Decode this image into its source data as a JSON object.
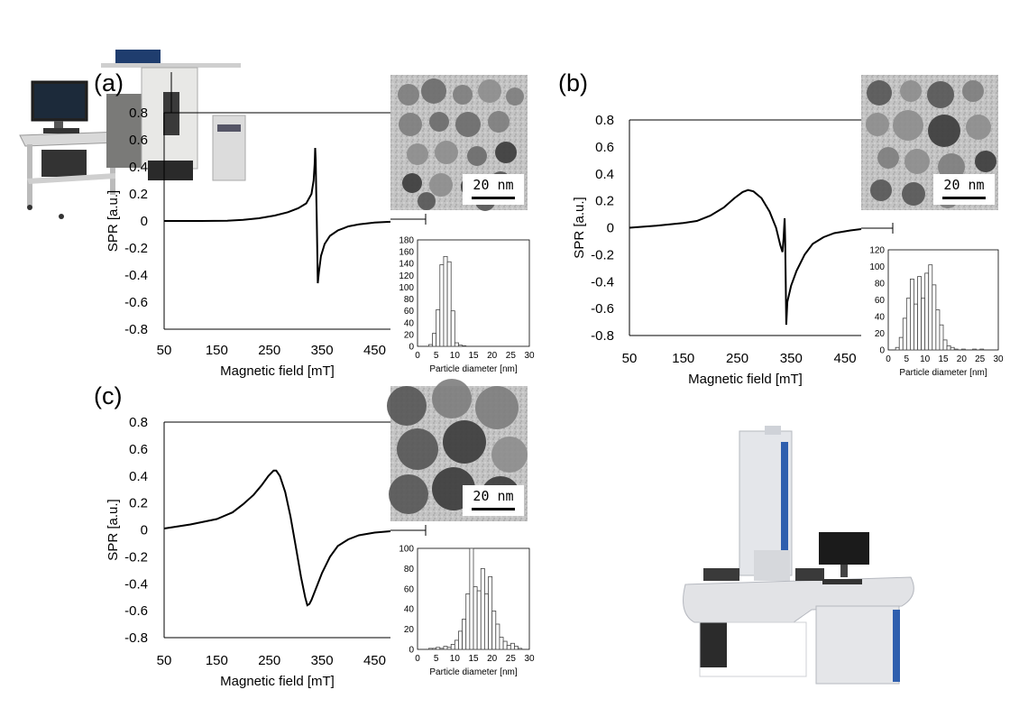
{
  "figure": {
    "panel_labels": [
      "(a)",
      "(b)",
      "(c)"
    ]
  },
  "chart_data": [
    {
      "panel": "(a)",
      "type": "line",
      "xlabel": "Magnetic field [mT]",
      "ylabel": "SPR [a.u.]",
      "xticks": [
        50,
        150,
        250,
        350,
        450
      ],
      "yticks": [
        0.8,
        0.6,
        0.4,
        0.2,
        0,
        -0.2,
        -0.4,
        -0.6,
        -0.8
      ],
      "xlim": [
        50,
        480
      ],
      "ylim": [
        -0.8,
        0.8
      ],
      "series": [
        {
          "values": [
            [
              50,
              0
            ],
            [
              120,
              0
            ],
            [
              170,
              0.002
            ],
            [
              200,
              0.008
            ],
            [
              230,
              0.02
            ],
            [
              260,
              0.04
            ],
            [
              285,
              0.065
            ],
            [
              305,
              0.095
            ],
            [
              320,
              0.13
            ],
            [
              330,
              0.2
            ],
            [
              334,
              0.3
            ],
            [
              336,
              0.42
            ],
            [
              337,
              0.54
            ],
            [
              338,
              0.45
            ],
            [
              339,
              0.2
            ],
            [
              340,
              0
            ],
            [
              341,
              -0.25
            ],
            [
              342,
              -0.46
            ],
            [
              344,
              -0.38
            ],
            [
              348,
              -0.26
            ],
            [
              355,
              -0.17
            ],
            [
              365,
              -0.11
            ],
            [
              380,
              -0.07
            ],
            [
              400,
              -0.04
            ],
            [
              420,
              -0.025
            ],
            [
              450,
              -0.012
            ],
            [
              480,
              -0.006
            ]
          ]
        }
      ],
      "tem_scale_label": "20 nm",
      "histogram": {
        "type": "bar",
        "xlabel": "Particle diameter [nm]",
        "xticks": [
          0,
          5,
          10,
          15,
          20,
          25,
          30
        ],
        "yticks": [
          0,
          20,
          40,
          60,
          80,
          100,
          120,
          140,
          160,
          180
        ],
        "ylim": [
          0,
          180
        ],
        "bin_width": 1,
        "bin_start": 3,
        "values": [
          3,
          22,
          62,
          138,
          152,
          143,
          60,
          6,
          2,
          1
        ]
      }
    },
    {
      "panel": "(b)",
      "type": "line",
      "xlabel": "Magnetic field [mT]",
      "ylabel": "SPR [a.u.]",
      "xticks": [
        50,
        150,
        250,
        350,
        450
      ],
      "yticks": [
        0.8,
        0.6,
        0.4,
        0.2,
        0,
        -0.2,
        -0.4,
        -0.6,
        -0.8
      ],
      "xlim": [
        50,
        480
      ],
      "ylim": [
        -0.8,
        0.8
      ],
      "series": [
        {
          "values": [
            [
              50,
              0
            ],
            [
              100,
              0.015
            ],
            [
              150,
              0.035
            ],
            [
              175,
              0.05
            ],
            [
              200,
              0.09
            ],
            [
              225,
              0.15
            ],
            [
              245,
              0.22
            ],
            [
              260,
              0.265
            ],
            [
              270,
              0.28
            ],
            [
              280,
              0.27
            ],
            [
              295,
              0.22
            ],
            [
              310,
              0.12
            ],
            [
              322,
              0
            ],
            [
              330,
              -0.13
            ],
            [
              334,
              -0.18
            ],
            [
              336,
              -0.08
            ],
            [
              338,
              0.07
            ],
            [
              339,
              -0.1
            ],
            [
              340,
              -0.4
            ],
            [
              341,
              -0.72
            ],
            [
              343,
              -0.55
            ],
            [
              350,
              -0.43
            ],
            [
              360,
              -0.32
            ],
            [
              375,
              -0.2
            ],
            [
              390,
              -0.12
            ],
            [
              410,
              -0.07
            ],
            [
              430,
              -0.04
            ],
            [
              460,
              -0.02
            ],
            [
              480,
              -0.01
            ]
          ]
        }
      ],
      "tem_scale_label": "20 nm",
      "histogram": {
        "type": "bar",
        "xlabel": "Particle diameter [nm]",
        "xticks": [
          0,
          5,
          10,
          15,
          20,
          25,
          30
        ],
        "yticks": [
          0,
          20,
          40,
          60,
          80,
          100,
          120
        ],
        "ylim": [
          0,
          120
        ],
        "bin_width": 1,
        "bin_start": 2,
        "values": [
          3,
          15,
          38,
          62,
          85,
          55,
          88,
          62,
          92,
          102,
          78,
          48,
          30,
          12,
          5,
          3,
          1,
          0,
          1,
          0,
          0,
          1,
          0,
          1
        ]
      }
    },
    {
      "panel": "(c)",
      "type": "line",
      "xlabel": "Magnetic field [mT]",
      "ylabel": "SPR [a.u.]",
      "xticks": [
        50,
        150,
        250,
        350,
        450
      ],
      "yticks": [
        0.8,
        0.6,
        0.4,
        0.2,
        0,
        -0.2,
        -0.4,
        -0.6,
        -0.8
      ],
      "xlim": [
        50,
        480
      ],
      "ylim": [
        -0.8,
        0.8
      ],
      "series": [
        {
          "values": [
            [
              50,
              0.01
            ],
            [
              100,
              0.04
            ],
            [
              150,
              0.08
            ],
            [
              180,
              0.13
            ],
            [
              200,
              0.19
            ],
            [
              220,
              0.26
            ],
            [
              235,
              0.33
            ],
            [
              248,
              0.4
            ],
            [
              258,
              0.44
            ],
            [
              263,
              0.44
            ],
            [
              270,
              0.4
            ],
            [
              280,
              0.28
            ],
            [
              290,
              0.1
            ],
            [
              300,
              -0.12
            ],
            [
              310,
              -0.35
            ],
            [
              318,
              -0.5
            ],
            [
              322,
              -0.56
            ],
            [
              326,
              -0.55
            ],
            [
              330,
              -0.52
            ],
            [
              338,
              -0.44
            ],
            [
              350,
              -0.32
            ],
            [
              365,
              -0.2
            ],
            [
              380,
              -0.12
            ],
            [
              400,
              -0.07
            ],
            [
              420,
              -0.04
            ],
            [
              450,
              -0.02
            ],
            [
              480,
              -0.01
            ]
          ]
        }
      ],
      "tem_scale_label": "20 nm",
      "histogram": {
        "type": "bar",
        "xlabel": "Particle diameter [nm]",
        "xticks": [
          0,
          5,
          10,
          15,
          20,
          25,
          30
        ],
        "yticks": [
          0,
          20,
          40,
          60,
          80,
          100
        ],
        "ylim": [
          0,
          100
        ],
        "bin_width": 1,
        "bin_start": 3,
        "values": [
          1,
          1,
          2,
          1,
          3,
          2,
          5,
          9,
          18,
          30,
          55,
          100,
          62,
          58,
          80,
          55,
          72,
          38,
          25,
          12,
          8,
          4,
          6,
          3,
          1
        ]
      }
    }
  ]
}
